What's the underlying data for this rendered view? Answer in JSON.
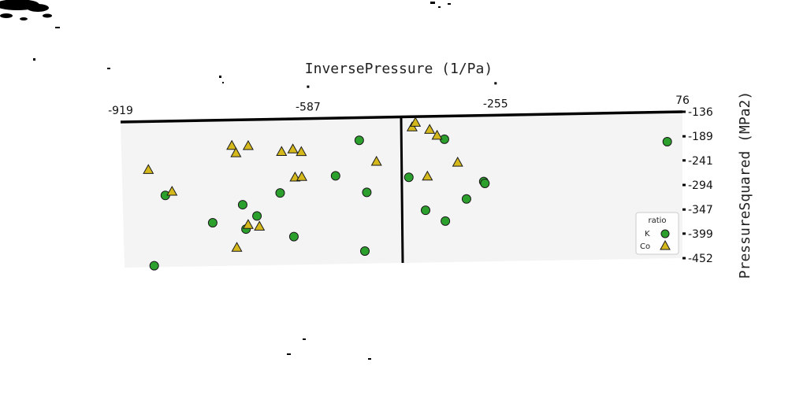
{
  "chart_data": {
    "type": "scatter",
    "title": "",
    "xlabel": "InversePressure (1/Pa)",
    "ylabel": "PressureSquared (MPa2)",
    "xlim": [
      -919,
      76
    ],
    "ylim": [
      -452,
      -136
    ],
    "x_ticks": [
      "-919",
      "-587",
      "-255",
      "76"
    ],
    "y_ticks": [
      "-136",
      "-189",
      "-241",
      "-294",
      "-347",
      "-399",
      "-452"
    ],
    "grid": false,
    "legend": {
      "title": "ratio",
      "placement": "right"
    },
    "series": [
      {
        "name": "K",
        "marker": "circle",
        "color": "#2ca02c",
        "points": [
          [
            -866,
            -449
          ],
          [
            -843,
            -297
          ],
          [
            -760,
            -358
          ],
          [
            -706,
            -320
          ],
          [
            -701,
            -373
          ],
          [
            -681,
            -345
          ],
          [
            -639,
            -296
          ],
          [
            -616,
            -391
          ],
          [
            -540,
            -261
          ],
          [
            -497,
            -185
          ],
          [
            -485,
            -298
          ],
          [
            -490,
            -425
          ],
          [
            -410,
            -267
          ],
          [
            -381,
            -339
          ],
          [
            -346,
            -363
          ],
          [
            -346,
            -186
          ],
          [
            -308,
            -316
          ],
          [
            -277,
            -279
          ],
          [
            -275,
            -283
          ],
          [
            49,
            -200
          ]
        ]
      },
      {
        "name": "Co",
        "marker": "triangle",
        "color": "#d4b81c",
        "points": [
          [
            -872,
            -241
          ],
          [
            -831,
            -289
          ],
          [
            -723,
            -192
          ],
          [
            -716,
            -208
          ],
          [
            -694,
            -193
          ],
          [
            -697,
            -364
          ],
          [
            -677,
            -368
          ],
          [
            -718,
            -413
          ],
          [
            -635,
            -207
          ],
          [
            -615,
            -202
          ],
          [
            -600,
            -208
          ],
          [
            -612,
            -263
          ],
          [
            -600,
            -262
          ],
          [
            -467,
            -232
          ],
          [
            -403,
            -159
          ],
          [
            -397,
            -149
          ],
          [
            -372,
            -165
          ],
          [
            -359,
            -178
          ],
          [
            -377,
            -266
          ],
          [
            -323,
            -237
          ]
        ]
      }
    ]
  }
}
